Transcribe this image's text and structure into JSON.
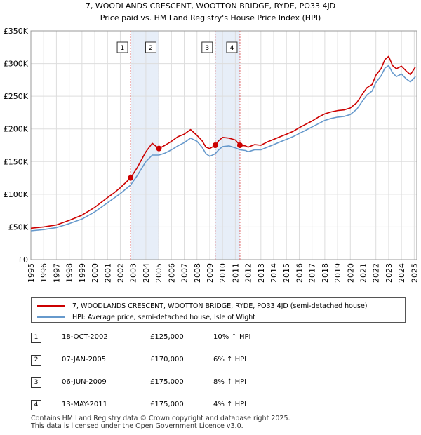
{
  "chart_data": {
    "type": "line",
    "title": "7, WOODLANDS CRESCENT, WOOTTON BRIDGE, RYDE, PO33 4JD",
    "subtitle": "Price paid vs. HM Land Registry's House Price Index (HPI)",
    "xlim": [
      1995,
      2025.2
    ],
    "ylim": [
      0,
      350000
    ],
    "y_ticks": [
      0,
      50000,
      100000,
      150000,
      200000,
      250000,
      300000,
      350000
    ],
    "y_tick_labels": [
      "£0",
      "£50K",
      "£100K",
      "£150K",
      "£200K",
      "£250K",
      "£300K",
      "£350K"
    ],
    "x_ticks": [
      1995,
      1996,
      1997,
      1998,
      1999,
      2000,
      2001,
      2002,
      2003,
      2004,
      2005,
      2006,
      2007,
      2008,
      2009,
      2010,
      2011,
      2012,
      2013,
      2014,
      2015,
      2016,
      2017,
      2018,
      2019,
      2020,
      2021,
      2022,
      2023,
      2024,
      2025
    ],
    "x_tick_labels": [
      "1995",
      "1996",
      "1997",
      "1998",
      "1999",
      "2000",
      "2001",
      "2002",
      "2003",
      "2004",
      "2005",
      "2006",
      "2007",
      "2008",
      "2009",
      "2010",
      "2011",
      "2012",
      "2013",
      "2014",
      "2015",
      "2016",
      "2017",
      "2018",
      "2019",
      "2020",
      "2021",
      "2022",
      "2023",
      "2024",
      "2025"
    ],
    "grid": true,
    "shaded_spans": [
      [
        2002.8,
        2005.02
      ],
      [
        2009.43,
        2011.36
      ]
    ],
    "series": [
      {
        "name": "7, WOODLANDS CRESCENT, WOOTTON BRIDGE, RYDE, PO33 4JD (semi-detached house)",
        "color": "#cc0000",
        "x": [
          1995,
          1996,
          1997,
          1998,
          1999,
          2000,
          2001,
          2001.5,
          2002,
          2002.8,
          2003.3,
          2004,
          2004.5,
          2005.02,
          2005.5,
          2006,
          2006.5,
          2007,
          2007.5,
          2008,
          2008.4,
          2008.7,
          2009,
          2009.43,
          2009.7,
          2010,
          2010.5,
          2011,
          2011.36,
          2011.8,
          2012,
          2012.5,
          2013,
          2013.5,
          2014,
          2014.5,
          2015,
          2015.5,
          2016,
          2016.5,
          2017,
          2017.5,
          2018,
          2018.5,
          2019,
          2019.5,
          2020,
          2020.5,
          2021,
          2021.3,
          2021.7,
          2022,
          2022.4,
          2022.7,
          2023,
          2023.3,
          2023.6,
          2024,
          2024.4,
          2024.7,
          2025.1
        ],
        "y": [
          48000,
          50000,
          53000,
          60000,
          68000,
          80000,
          95000,
          102000,
          110000,
          125000,
          140000,
          165000,
          178000,
          170000,
          175000,
          181000,
          188000,
          192000,
          199000,
          190000,
          182000,
          172000,
          170000,
          175000,
          182000,
          187000,
          186000,
          183000,
          175000,
          174000,
          172000,
          176000,
          175000,
          180000,
          184000,
          188000,
          192000,
          196000,
          202000,
          207000,
          212000,
          218000,
          223000,
          226000,
          228000,
          229000,
          232000,
          240000,
          255000,
          263000,
          268000,
          282000,
          292000,
          306000,
          311000,
          297000,
          292000,
          296000,
          288000,
          283000,
          295000
        ]
      },
      {
        "name": "HPI: Average price, semi-detached house, Isle of Wight",
        "color": "#6699cc",
        "x": [
          1995,
          1996,
          1997,
          1998,
          1999,
          2000,
          2001,
          2001.5,
          2002,
          2002.8,
          2003.3,
          2004,
          2004.5,
          2005.02,
          2005.5,
          2006,
          2006.5,
          2007,
          2007.5,
          2008,
          2008.4,
          2008.7,
          2009,
          2009.43,
          2009.7,
          2010,
          2010.5,
          2011,
          2011.36,
          2011.8,
          2012,
          2012.5,
          2013,
          2013.5,
          2014,
          2014.5,
          2015,
          2015.5,
          2016,
          2016.5,
          2017,
          2017.5,
          2018,
          2018.5,
          2019,
          2019.5,
          2020,
          2020.5,
          2021,
          2021.3,
          2021.7,
          2022,
          2022.4,
          2022.7,
          2023,
          2023.3,
          2023.6,
          2024,
          2024.4,
          2024.7,
          2025.1
        ],
        "y": [
          44000,
          46000,
          49000,
          55000,
          62000,
          73000,
          87000,
          94000,
          101000,
          114000,
          128000,
          150000,
          160000,
          160000,
          163000,
          168000,
          174000,
          179000,
          186000,
          181000,
          172000,
          162000,
          158000,
          162000,
          168000,
          173000,
          174000,
          171000,
          168000,
          167000,
          165000,
          168000,
          168000,
          172000,
          176000,
          180000,
          184000,
          188000,
          193000,
          198000,
          203000,
          208000,
          213000,
          216000,
          218000,
          219000,
          222000,
          230000,
          244000,
          252000,
          258000,
          271000,
          281000,
          293000,
          297000,
          286000,
          280000,
          284000,
          276000,
          272000,
          280000
        ]
      }
    ],
    "sales": [
      {
        "label": "1",
        "x": 2002.8,
        "y": 125000,
        "date": "18-OCT-2002",
        "price": "£125,000",
        "hpi": "10% ↑ HPI"
      },
      {
        "label": "2",
        "x": 2005.02,
        "y": 170000,
        "date": "07-JAN-2005",
        "price": "£170,000",
        "hpi": "6% ↑ HPI"
      },
      {
        "label": "3",
        "x": 2009.43,
        "y": 175000,
        "date": "06-JUN-2009",
        "price": "£175,000",
        "hpi": "8% ↑ HPI"
      },
      {
        "label": "4",
        "x": 2011.36,
        "y": 175000,
        "date": "13-MAY-2011",
        "price": "£175,000",
        "hpi": "4% ↑ HPI"
      }
    ]
  },
  "legend": {
    "property_label": "7, WOODLANDS CRESCENT, WOOTTON BRIDGE, RYDE, PO33 4JD (semi-detached house)",
    "hpi_label": "HPI: Average price, semi-detached house, Isle of Wight",
    "property_color": "#cc0000",
    "hpi_color": "#6699cc"
  },
  "footer": {
    "line1": "Contains HM Land Registry data © Crown copyright and database right 2025.",
    "line2": "This data is licensed under the Open Government Licence v3.0."
  }
}
